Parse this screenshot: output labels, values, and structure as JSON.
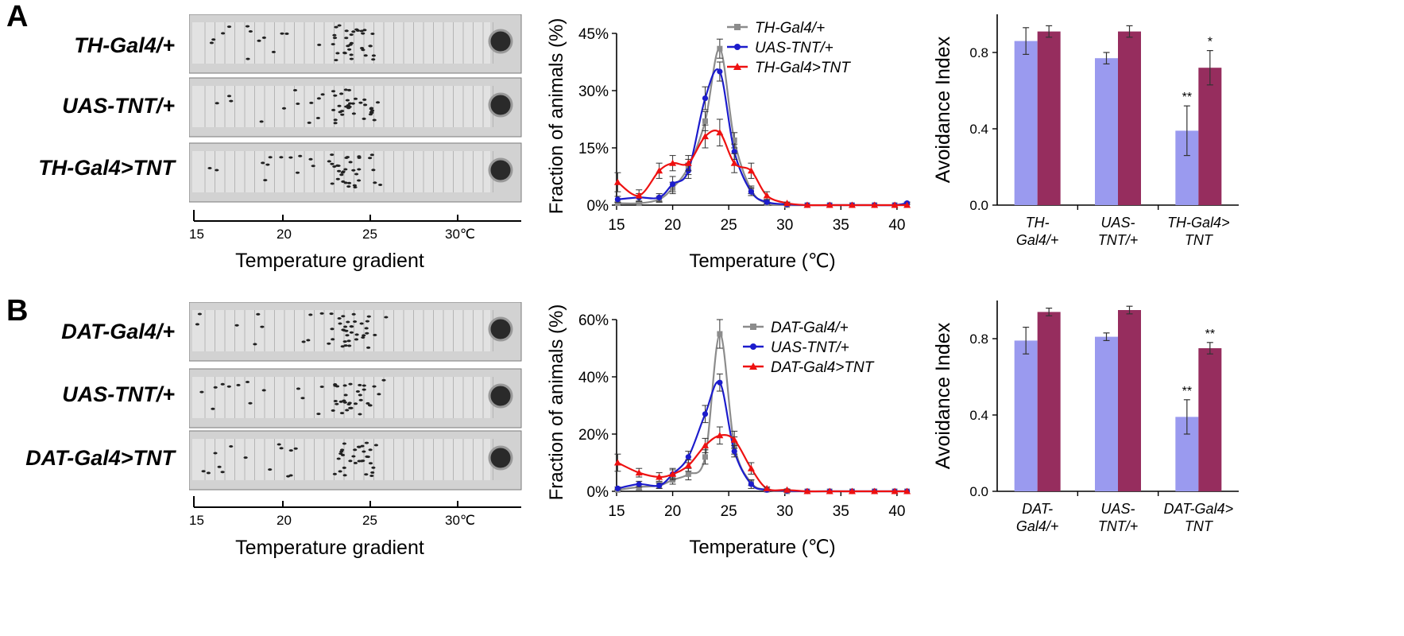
{
  "panels": [
    {
      "letter": "A",
      "strip_labels": [
        "TH-Gal4/+",
        "UAS-TNT/+",
        "TH-Gal4>TNT"
      ],
      "gradient": {
        "ticks": [
          "15",
          "20",
          "25",
          "30℃"
        ],
        "title": "Temperature gradient"
      }
    },
    {
      "letter": "B",
      "strip_labels": [
        "DAT-Gal4/+",
        "UAS-TNT/+",
        "DAT-Gal4>TNT"
      ],
      "gradient": {
        "ticks": [
          "15",
          "20",
          "25",
          "30℃"
        ],
        "title": "Temperature gradient"
      }
    }
  ],
  "colors": {
    "grey": "#8c8c8c",
    "blue": "#1c1ccc",
    "red": "#ee1111",
    "bar_light": "#9a9aef",
    "bar_dark": "#962d5e"
  },
  "chart_data": [
    {
      "type": "line",
      "panel": "A",
      "xlabel": "Temperature (℃)",
      "ylabel": "Fraction of animals (%)",
      "xlim": [
        15,
        41
      ],
      "ylim": [
        0,
        45
      ],
      "xticks": [
        15,
        20,
        25,
        30,
        35,
        40
      ],
      "yticks": [
        0,
        15,
        30,
        45
      ],
      "ytick_labels": [
        "0%",
        "15%",
        "30%",
        "45%"
      ],
      "x": [
        15.1,
        17.0,
        18.8,
        20.0,
        21.4,
        22.9,
        24.2,
        25.5,
        27.0,
        28.4,
        30.2,
        32.0,
        34.0,
        36.0,
        38.0,
        39.8,
        40.9
      ],
      "series": [
        {
          "name": "TH-Gal4/+",
          "color": "grey",
          "marker": "square",
          "values": [
            0.5,
            0.5,
            1.5,
            4.5,
            10,
            22,
            41,
            17,
            4,
            0.5,
            0,
            0,
            0,
            0,
            0,
            0,
            0
          ],
          "errors": [
            0.3,
            0.3,
            0.8,
            1.5,
            2,
            2.5,
            2.5,
            2,
            1,
            0.3,
            0,
            0,
            0,
            0,
            0,
            0,
            0
          ]
        },
        {
          "name": "UAS-TNT/+",
          "color": "blue",
          "marker": "circle",
          "values": [
            1.5,
            2,
            2,
            5.5,
            9,
            28,
            35,
            14,
            3.5,
            0.8,
            0.2,
            0,
            0,
            0,
            0,
            0,
            0.5
          ],
          "errors": [
            0.8,
            1,
            1,
            2,
            2,
            3,
            2.5,
            2,
            1,
            0.5,
            0.2,
            0,
            0,
            0,
            0,
            0,
            0.3
          ]
        },
        {
          "name": "TH-Gal4>TNT",
          "color": "red",
          "marker": "triangle",
          "values": [
            6,
            2.5,
            9,
            11,
            11,
            18,
            19,
            11,
            9,
            2.5,
            0.5,
            0,
            0,
            0,
            0,
            0,
            0
          ],
          "errors": [
            2.5,
            1.5,
            2,
            2,
            2,
            3,
            3.5,
            2.5,
            2,
            1,
            0.3,
            0,
            0,
            0,
            0,
            0,
            0
          ]
        }
      ]
    },
    {
      "type": "bar",
      "panel": "A",
      "ylabel": "Avoidance Index",
      "ylim": [
        0,
        1.0
      ],
      "yticks": [
        0,
        0.4,
        0.8
      ],
      "ytick_labels": [
        "0.0",
        "0.4",
        "0.8"
      ],
      "categories": [
        [
          "TH-",
          "Gal4/+"
        ],
        [
          "UAS-",
          "TNT/+"
        ],
        [
          "TH-Gal4>",
          "TNT"
        ]
      ],
      "series": [
        {
          "color": "bar_light",
          "values": [
            0.86,
            0.77,
            0.39
          ],
          "errors": [
            0.07,
            0.03,
            0.13
          ],
          "annotations": [
            "",
            "",
            "**"
          ]
        },
        {
          "color": "bar_dark",
          "values": [
            0.91,
            0.91,
            0.72
          ],
          "errors": [
            0.03,
            0.03,
            0.09
          ],
          "annotations": [
            "",
            "",
            "*"
          ]
        }
      ]
    },
    {
      "type": "line",
      "panel": "B",
      "xlabel": "Temperature (℃)",
      "ylabel": "Fraction of animals (%)",
      "xlim": [
        15,
        41
      ],
      "ylim": [
        0,
        60
      ],
      "xticks": [
        15,
        20,
        25,
        30,
        35,
        40
      ],
      "yticks": [
        0,
        20,
        40,
        60
      ],
      "ytick_labels": [
        "0%",
        "20%",
        "40%",
        "60%"
      ],
      "x": [
        15.1,
        17.0,
        18.8,
        20.0,
        21.4,
        22.9,
        24.2,
        25.5,
        27.0,
        28.4,
        30.2,
        32.0,
        34.0,
        36.0,
        38.0,
        39.8,
        40.9
      ],
      "series": [
        {
          "name": "DAT-Gal4/+",
          "color": "grey",
          "marker": "square",
          "values": [
            0.5,
            1.5,
            2,
            4,
            6,
            12,
            55,
            16,
            3,
            0.5,
            0,
            0,
            0,
            0,
            0,
            0,
            0
          ],
          "errors": [
            0.3,
            1,
            1,
            1.5,
            2,
            2.5,
            5,
            3,
            1,
            0.3,
            0,
            0,
            0,
            0,
            0,
            0,
            0
          ]
        },
        {
          "name": "UAS-TNT/+",
          "color": "blue",
          "marker": "circle",
          "values": [
            1,
            2.5,
            2,
            6,
            12,
            27,
            38,
            14,
            2.5,
            0.5,
            0.2,
            0,
            0,
            0,
            0,
            0,
            0
          ],
          "errors": [
            0.5,
            1,
            1,
            2,
            2,
            3,
            3,
            2,
            1.5,
            0.3,
            0.2,
            0,
            0,
            0,
            0,
            0,
            0
          ]
        },
        {
          "name": "DAT-Gal4>TNT",
          "color": "red",
          "marker": "triangle",
          "values": [
            10,
            6.5,
            5,
            6,
            9,
            16,
            19.5,
            18,
            8,
            1,
            0.5,
            0,
            0,
            0,
            0,
            0,
            0
          ],
          "errors": [
            3,
            1.5,
            1.5,
            1.5,
            2,
            2.5,
            3,
            3,
            2,
            0.5,
            0.3,
            0,
            0,
            0,
            0,
            0,
            0
          ]
        }
      ]
    },
    {
      "type": "bar",
      "panel": "B",
      "ylabel": "Avoidance Index",
      "ylim": [
        0,
        1.0
      ],
      "yticks": [
        0,
        0.4,
        0.8
      ],
      "ytick_labels": [
        "0.0",
        "0.4",
        "0.8"
      ],
      "categories": [
        [
          "DAT-",
          "Gal4/+"
        ],
        [
          "UAS-",
          "TNT/+"
        ],
        [
          "DAT-Gal4>",
          "TNT"
        ]
      ],
      "series": [
        {
          "color": "bar_light",
          "values": [
            0.79,
            0.81,
            0.39
          ],
          "errors": [
            0.07,
            0.02,
            0.09
          ],
          "annotations": [
            "",
            "",
            "**"
          ]
        },
        {
          "color": "bar_dark",
          "values": [
            0.94,
            0.95,
            0.75
          ],
          "errors": [
            0.02,
            0.02,
            0.03
          ],
          "annotations": [
            "",
            "",
            "**"
          ]
        }
      ]
    }
  ]
}
